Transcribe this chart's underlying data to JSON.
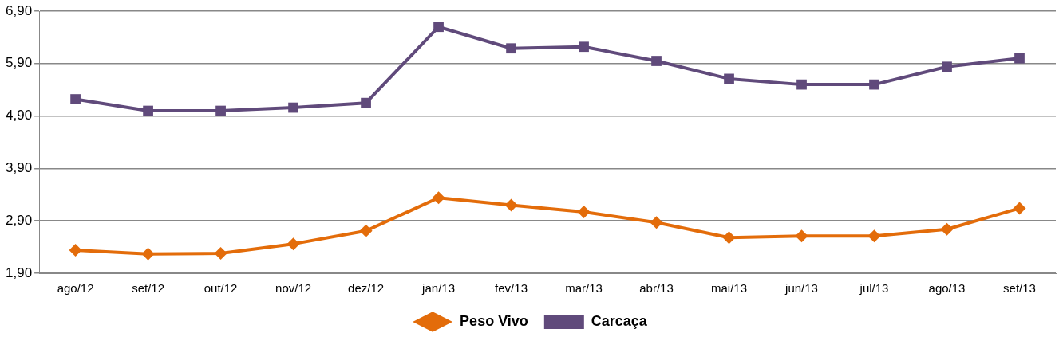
{
  "chart_data": {
    "type": "line",
    "categories": [
      "ago/12",
      "set/12",
      "out/12",
      "nov/12",
      "dez/12",
      "jan/13",
      "fev/13",
      "mar/13",
      "abr/13",
      "mai/13",
      "jun/13",
      "jul/13",
      "ago/13",
      "set/13"
    ],
    "series": [
      {
        "name": "Peso Vivo",
        "color": "#e36c0a",
        "marker": "diamond",
        "values": [
          2.34,
          2.27,
          2.28,
          2.46,
          2.71,
          3.34,
          3.2,
          3.07,
          2.87,
          2.58,
          2.61,
          2.61,
          2.74,
          3.14
        ]
      },
      {
        "name": "Carcaça",
        "color": "#604a7b",
        "marker": "square",
        "values": [
          5.22,
          5.0,
          5.0,
          5.06,
          5.15,
          6.6,
          6.19,
          6.22,
          5.95,
          5.61,
          5.5,
          5.5,
          5.84,
          6.0
        ]
      }
    ],
    "ylim": [
      1.9,
      6.9
    ],
    "yticks": [
      {
        "value": 1.9,
        "label": "1,90"
      },
      {
        "value": 2.9,
        "label": "2,90"
      },
      {
        "value": 3.9,
        "label": "3,90"
      },
      {
        "value": 4.9,
        "label": "4,90"
      },
      {
        "value": 5.9,
        "label": "5,90"
      },
      {
        "value": 6.9,
        "label": "6,90"
      }
    ],
    "grid": "y",
    "legend": "bottom",
    "line_style": "solid"
  }
}
